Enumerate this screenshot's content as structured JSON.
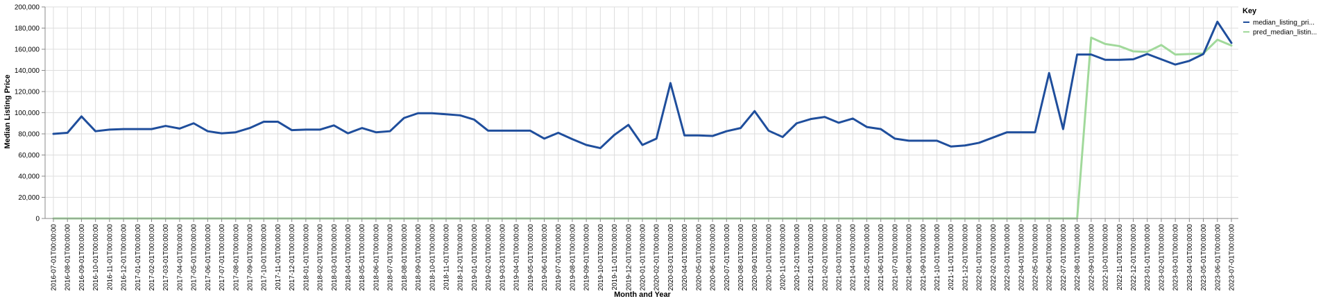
{
  "chart_data": {
    "type": "line",
    "xlabel": "Month and Year",
    "ylabel": "Median Listing Price",
    "ylim": [
      0,
      200000
    ],
    "yticks": [
      0,
      20000,
      40000,
      60000,
      80000,
      100000,
      120000,
      140000,
      160000,
      180000,
      200000
    ],
    "ytick_labels": [
      "0",
      "20,000",
      "40,000",
      "60,000",
      "80,000",
      "100,000",
      "120,000",
      "140,000",
      "160,000",
      "180,000",
      "200,000"
    ],
    "grid": true,
    "legend": {
      "title": "Key",
      "placement": "top-right"
    },
    "x": [
      "2016-07-01T00:00:00",
      "2016-08-01T00:00:00",
      "2016-09-01T00:00:00",
      "2016-10-01T00:00:00",
      "2016-11-01T00:00:00",
      "2016-12-01T00:00:00",
      "2017-01-01T00:00:00",
      "2017-02-01T00:00:00",
      "2017-03-01T00:00:00",
      "2017-04-01T00:00:00",
      "2017-05-01T00:00:00",
      "2017-06-01T00:00:00",
      "2017-07-01T00:00:00",
      "2017-08-01T00:00:00",
      "2017-09-01T00:00:00",
      "2017-10-01T00:00:00",
      "2017-11-01T00:00:00",
      "2017-12-01T00:00:00",
      "2018-01-01T00:00:00",
      "2018-02-01T00:00:00",
      "2018-03-01T00:00:00",
      "2018-04-01T00:00:00",
      "2018-05-01T00:00:00",
      "2018-06-01T00:00:00",
      "2018-07-01T00:00:00",
      "2018-08-01T00:00:00",
      "2018-09-01T00:00:00",
      "2018-10-01T00:00:00",
      "2018-11-01T00:00:00",
      "2018-12-01T00:00:00",
      "2019-01-01T00:00:00",
      "2019-02-01T00:00:00",
      "2019-03-01T00:00:00",
      "2019-04-01T00:00:00",
      "2019-05-01T00:00:00",
      "2019-06-01T00:00:00",
      "2019-07-01T00:00:00",
      "2019-08-01T00:00:00",
      "2019-09-01T00:00:00",
      "2019-10-01T00:00:00",
      "2019-11-01T00:00:00",
      "2019-12-01T00:00:00",
      "2020-01-01T00:00:00",
      "2020-02-01T00:00:00",
      "2020-03-01T00:00:00",
      "2020-04-01T00:00:00",
      "2020-05-01T00:00:00",
      "2020-06-01T00:00:00",
      "2020-07-01T00:00:00",
      "2020-08-01T00:00:00",
      "2020-09-01T00:00:00",
      "2020-10-01T00:00:00",
      "2020-11-01T00:00:00",
      "2020-12-01T00:00:00",
      "2021-01-01T00:00:00",
      "2021-02-01T00:00:00",
      "2021-03-01T00:00:00",
      "2021-04-01T00:00:00",
      "2021-05-01T00:00:00",
      "2021-06-01T00:00:00",
      "2021-07-01T00:00:00",
      "2021-08-01T00:00:00",
      "2021-09-01T00:00:00",
      "2021-10-01T00:00:00",
      "2021-11-01T00:00:00",
      "2021-12-01T00:00:00",
      "2022-01-01T00:00:00",
      "2022-02-01T00:00:00",
      "2022-03-01T00:00:00",
      "2022-04-01T00:00:00",
      "2022-05-01T00:00:00",
      "2022-06-01T00:00:00",
      "2022-07-01T00:00:00",
      "2022-08-01T00:00:00",
      "2022-09-01T00:00:00",
      "2022-10-01T00:00:00",
      "2022-11-01T00:00:00",
      "2022-12-01T00:00:00",
      "2023-01-01T00:00:00",
      "2023-02-01T00:00:00",
      "2023-03-01T00:00:00",
      "2023-04-01T00:00:00",
      "2023-05-01T00:00:00",
      "2023-06-01T00:00:00",
      "2023-07-01T00:00:00"
    ],
    "series": [
      {
        "name": "median_listing_pri...",
        "color": "#1f4e9c",
        "values": [
          80000,
          81000,
          96500,
          82500,
          84000,
          84500,
          84500,
          84500,
          87500,
          85000,
          90000,
          82500,
          80500,
          81500,
          85500,
          91500,
          91500,
          83500,
          84000,
          84000,
          88000,
          80500,
          85500,
          81500,
          82500,
          95000,
          99500,
          99500,
          98500,
          97500,
          93500,
          83000,
          83000,
          83000,
          83000,
          75500,
          81000,
          75000,
          69500,
          66500,
          79000,
          88500,
          69500,
          75500,
          128000,
          78500,
          78500,
          78000,
          82500,
          85500,
          101500,
          83000,
          77000,
          90000,
          94000,
          96000,
          90500,
          94500,
          86500,
          84500,
          75500,
          73500,
          73500,
          73500,
          68000,
          69000,
          71500,
          76500,
          81500,
          81500,
          81500,
          137500,
          84500,
          155000,
          155000,
          150000,
          150000,
          150500,
          155500,
          150500,
          145500,
          149000,
          155500,
          186000,
          166000
        ]
      },
      {
        "name": "pred_median_listin...",
        "color": "#a1d99b",
        "values": [
          0,
          0,
          0,
          0,
          0,
          0,
          0,
          0,
          0,
          0,
          0,
          0,
          0,
          0,
          0,
          0,
          0,
          0,
          0,
          0,
          0,
          0,
          0,
          0,
          0,
          0,
          0,
          0,
          0,
          0,
          0,
          0,
          0,
          0,
          0,
          0,
          0,
          0,
          0,
          0,
          0,
          0,
          0,
          0,
          0,
          0,
          0,
          0,
          0,
          0,
          0,
          0,
          0,
          0,
          0,
          0,
          0,
          0,
          0,
          0,
          0,
          0,
          0,
          0,
          0,
          0,
          0,
          0,
          0,
          0,
          0,
          0,
          0,
          0,
          171000,
          165000,
          163000,
          158000,
          157500,
          164000,
          155000,
          155500,
          156000,
          169000,
          163500
        ]
      }
    ]
  }
}
